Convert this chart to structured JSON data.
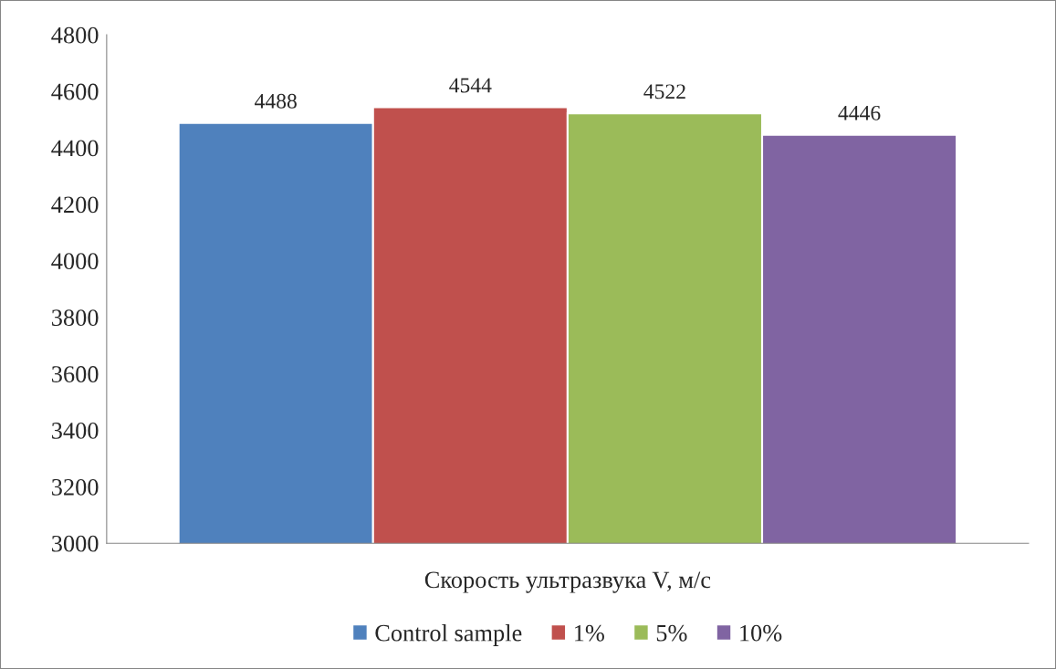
{
  "chart_data": {
    "type": "bar",
    "categories": [
      "Скорость ультразвука V, м/с"
    ],
    "series": [
      {
        "name": "Control sample",
        "color": "#4f81bd",
        "values": [
          4488
        ]
      },
      {
        "name": "1%",
        "color": "#c0504d",
        "values": [
          4544
        ]
      },
      {
        "name": "5%",
        "color": "#9bbb59",
        "values": [
          4522
        ]
      },
      {
        "name": "10%",
        "color": "#8064a2",
        "values": [
          4446
        ]
      }
    ],
    "ylim": [
      3000,
      4800
    ],
    "yticks": [
      3000,
      3200,
      3400,
      3600,
      3800,
      4000,
      4200,
      4400,
      4600,
      4800
    ],
    "data_labels": true,
    "grid": false,
    "legend": "bottom"
  }
}
